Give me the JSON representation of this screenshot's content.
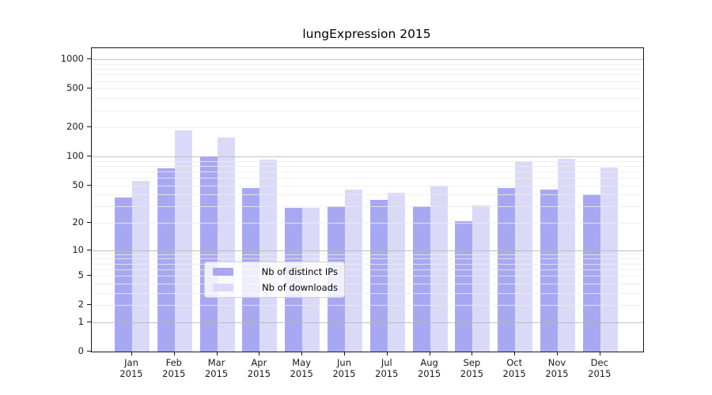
{
  "chart_data": {
    "type": "bar",
    "title": "lungExpression 2015",
    "categories": [
      "Jan",
      "Feb",
      "Mar",
      "Apr",
      "May",
      "Jun",
      "Jul",
      "Aug",
      "Sep",
      "Oct",
      "Nov",
      "Dec"
    ],
    "category_year": "2015",
    "series": [
      {
        "name": "Nb of distinct IPs",
        "color": "#a8a8f2",
        "values": [
          37,
          76,
          100,
          47,
          29,
          30,
          35,
          30,
          21,
          47,
          45,
          40
        ]
      },
      {
        "name": "Nb of downloads",
        "color": "#dadaf8",
        "values": [
          56,
          188,
          157,
          93,
          29,
          45,
          42,
          50,
          31,
          90,
          94,
          77
        ]
      }
    ],
    "y_axis": {
      "ticks": [
        0,
        1,
        2,
        5,
        10,
        20,
        50,
        100,
        200,
        500,
        1000
      ],
      "scale": "log10(value+1)",
      "range": [
        0,
        1000
      ],
      "major_gridlines_at": [
        1,
        10,
        100,
        1000
      ]
    },
    "legend": {
      "position": "lower center",
      "entries_from_series": true
    },
    "grid": true
  },
  "colors": {
    "minor_grid": "#ececec",
    "major_grid": "#b3b3b3",
    "axis": "#1a1a1a",
    "text": "#1a1a1a"
  }
}
